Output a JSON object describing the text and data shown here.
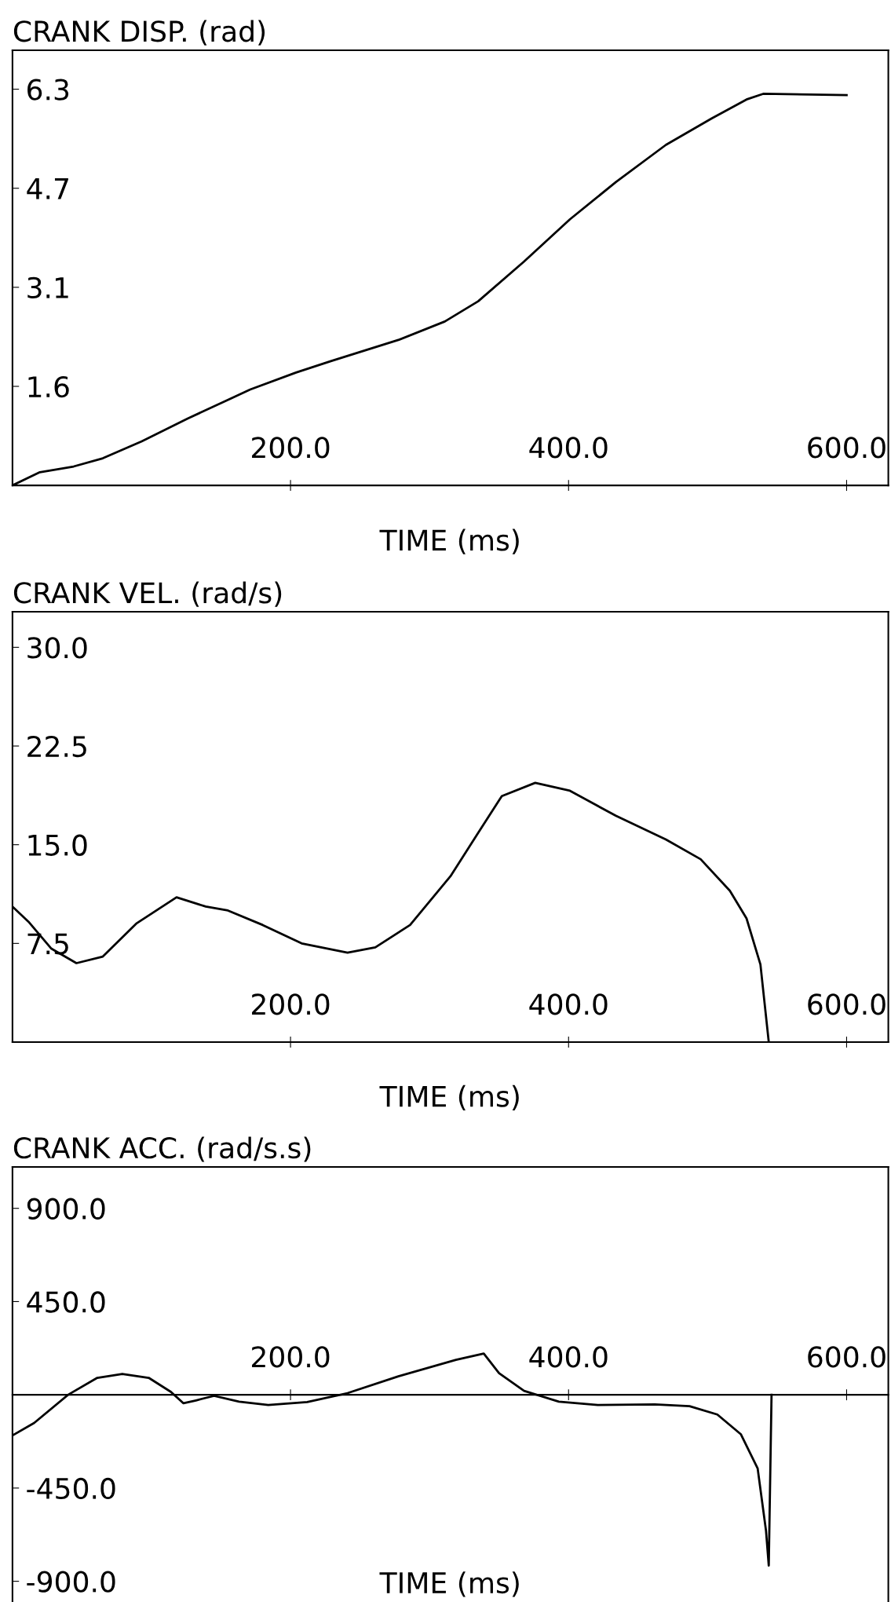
{
  "chart_data": [
    {
      "type": "line",
      "title": "CRANK DISP. (rad)",
      "xlabel": "TIME (ms)",
      "xlim": [
        0,
        630
      ],
      "xticks": [
        {
          "value": 200,
          "label": "200.0"
        },
        {
          "value": 400,
          "label": "400.0"
        },
        {
          "value": 600,
          "label": "600.0"
        }
      ],
      "ylim": [
        0,
        6.9
      ],
      "yticks": [
        {
          "value": 1.5708,
          "label": "1.6"
        },
        {
          "value": 3.1416,
          "label": "3.1"
        },
        {
          "value": 4.7124,
          "label": "4.7"
        },
        {
          "value": 6.2832,
          "label": "6.3"
        }
      ],
      "grid": false,
      "legend": false,
      "series": [
        {
          "color": "#000000",
          "x": [
            0,
            19.7,
            44,
            65,
            93,
            126,
            171,
            204,
            229,
            278,
            311,
            335,
            368,
            401,
            434,
            470,
            503,
            528,
            540,
            600
          ],
          "values": [
            0,
            0.21,
            0.3,
            0.43,
            0.7,
            1.06,
            1.52,
            1.79,
            1.97,
            2.31,
            2.6,
            2.92,
            3.55,
            4.22,
            4.81,
            5.4,
            5.82,
            6.12,
            6.21,
            6.19
          ]
        }
      ]
    },
    {
      "type": "line",
      "title": "CRANK VEL. (rad/s)",
      "xlabel": "TIME (ms)",
      "xlim": [
        0,
        630
      ],
      "xticks": [
        {
          "value": 200,
          "label": "200.0"
        },
        {
          "value": 400,
          "label": "400.0"
        },
        {
          "value": 600,
          "label": "600.0"
        }
      ],
      "ylim": [
        0,
        32.7
      ],
      "yticks": [
        {
          "value": 7.5,
          "label": "7.5"
        },
        {
          "value": 15,
          "label": "15.0"
        },
        {
          "value": 22.5,
          "label": "22.5"
        },
        {
          "value": 30,
          "label": "30.0"
        }
      ],
      "grid": false,
      "legend": false,
      "series": [
        {
          "color": "#000000",
          "x": [
            0,
            11.5,
            28,
            46,
            65,
            89,
            118,
            139,
            155,
            180,
            208,
            241,
            261,
            286,
            315,
            335,
            352,
            376,
            401,
            434,
            470,
            495,
            516,
            528,
            538,
            544
          ],
          "values": [
            10.3,
            9.15,
            7.1,
            6.0,
            6.5,
            9.0,
            11.0,
            10.3,
            10.0,
            8.9,
            7.5,
            6.8,
            7.2,
            8.9,
            12.6,
            15.9,
            18.7,
            19.7,
            19.1,
            17.2,
            15.4,
            13.9,
            11.5,
            9.4,
            5.9,
            0
          ]
        }
      ]
    },
    {
      "type": "line",
      "title": "CRANK ACC. (rad/s.s)",
      "xlabel": "TIME (ms)",
      "xlim": [
        0,
        630
      ],
      "xticks": [
        {
          "value": 200,
          "label": "200.0"
        },
        {
          "value": 400,
          "label": "400.0"
        },
        {
          "value": 600,
          "label": "600.0"
        }
      ],
      "ylim": [
        -1000,
        1100
      ],
      "yticks": [
        {
          "value": -900,
          "label": "-900.0"
        },
        {
          "value": -450,
          "label": "-450.0"
        },
        {
          "value": 450,
          "label": "450.0"
        },
        {
          "value": 900,
          "label": "900.0"
        }
      ],
      "grid": false,
      "legend": false,
      "series": [
        {
          "color": "#000000",
          "x": [
            0,
            15.6,
            40,
            61,
            79,
            98,
            114,
            123,
            132,
            145,
            163,
            184,
            212,
            241,
            278,
            319,
            339,
            350,
            368,
            393,
            421,
            462,
            487,
            507,
            524,
            536,
            542,
            544,
            546
          ],
          "values": [
            -196,
            -136,
            0,
            82,
            101,
            82,
            14,
            -41,
            -27,
            -5,
            -33,
            -49,
            -35,
            8,
            90,
            169,
            199,
            104,
            19,
            -33,
            -49,
            -46,
            -55,
            -95,
            -191,
            -355,
            -655,
            -824,
            0
          ]
        }
      ]
    }
  ]
}
